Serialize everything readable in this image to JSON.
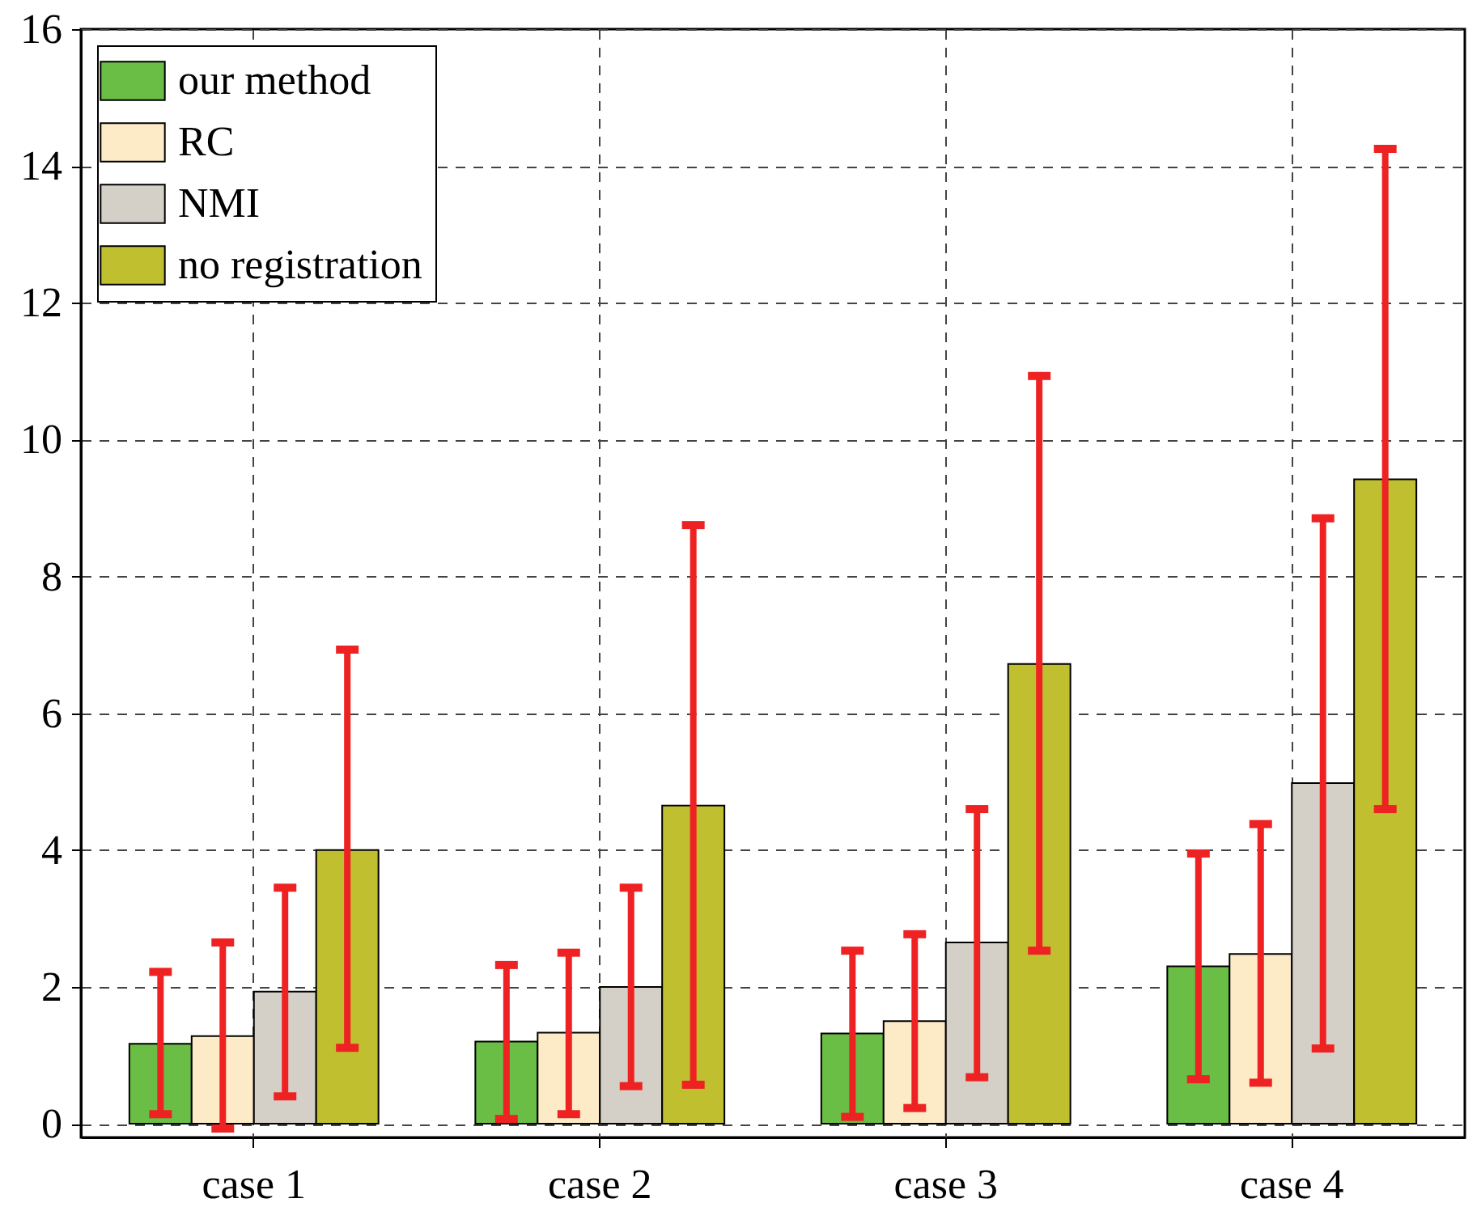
{
  "chart_data": {
    "type": "bar",
    "categories": [
      "case 1",
      "case 2",
      "case 3",
      "case 4"
    ],
    "series": [
      {
        "name": "our method",
        "color": "#6abd45",
        "values": [
          1.17,
          1.2,
          1.32,
          2.3
        ],
        "errors": [
          [
            0.14,
            2.22
          ],
          [
            0.07,
            2.32
          ],
          [
            0.1,
            2.53
          ],
          [
            0.65,
            3.95
          ]
        ]
      },
      {
        "name": "RC",
        "color": "#fdebc8",
        "values": [
          1.28,
          1.33,
          1.5,
          2.48
        ],
        "errors": [
          [
            -0.07,
            2.65
          ],
          [
            0.14,
            2.5
          ],
          [
            0.23,
            2.77
          ],
          [
            0.6,
            4.38
          ]
        ]
      },
      {
        "name": "NMI",
        "color": "#d4d0c8",
        "values": [
          1.93,
          2.0,
          2.65,
          4.98
        ],
        "errors": [
          [
            0.4,
            3.45
          ],
          [
            0.55,
            3.45
          ],
          [
            0.68,
            4.6
          ],
          [
            1.1,
            8.85
          ]
        ]
      },
      {
        "name": "no registration",
        "color": "#bfbf30",
        "values": [
          4.0,
          4.65,
          6.72,
          9.42
        ],
        "errors": [
          [
            1.11,
            6.93
          ],
          [
            0.57,
            8.75
          ],
          [
            2.53,
            10.93
          ],
          [
            4.6,
            14.25
          ]
        ]
      }
    ],
    "ylim": [
      -0.2,
      16
    ],
    "yticks": [
      0,
      2,
      4,
      6,
      8,
      10,
      12,
      14,
      16
    ],
    "grid": true,
    "legend": "top left"
  }
}
